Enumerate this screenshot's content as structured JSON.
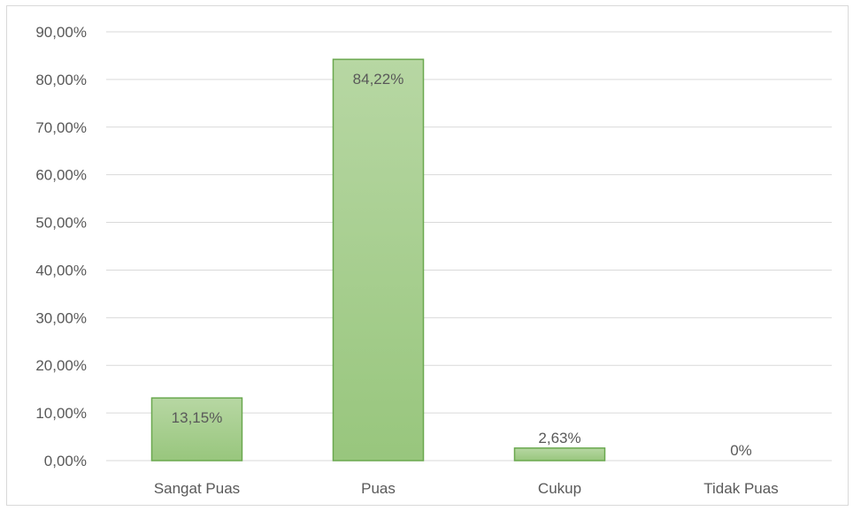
{
  "chart_data": {
    "type": "bar",
    "categories": [
      "Sangat Puas",
      "Puas",
      "Cukup",
      "Tidak Puas"
    ],
    "values": [
      13.15,
      84.22,
      2.63,
      0
    ],
    "data_labels": [
      "13,15%",
      "84,22%",
      "2,63%",
      "0%"
    ],
    "y_tick_labels": [
      "0,00%",
      "10,00%",
      "20,00%",
      "30,00%",
      "40,00%",
      "50,00%",
      "60,00%",
      "70,00%",
      "80,00%",
      "90,00%"
    ],
    "ylim": [
      0,
      90
    ],
    "y_step": 10,
    "grid": true,
    "colors": {
      "bar_top": "#b7d7a3",
      "bar_bottom": "#98c67d",
      "bar_border": "#6aa84f",
      "grid": "#d9d9d9",
      "text": "#595959"
    }
  }
}
